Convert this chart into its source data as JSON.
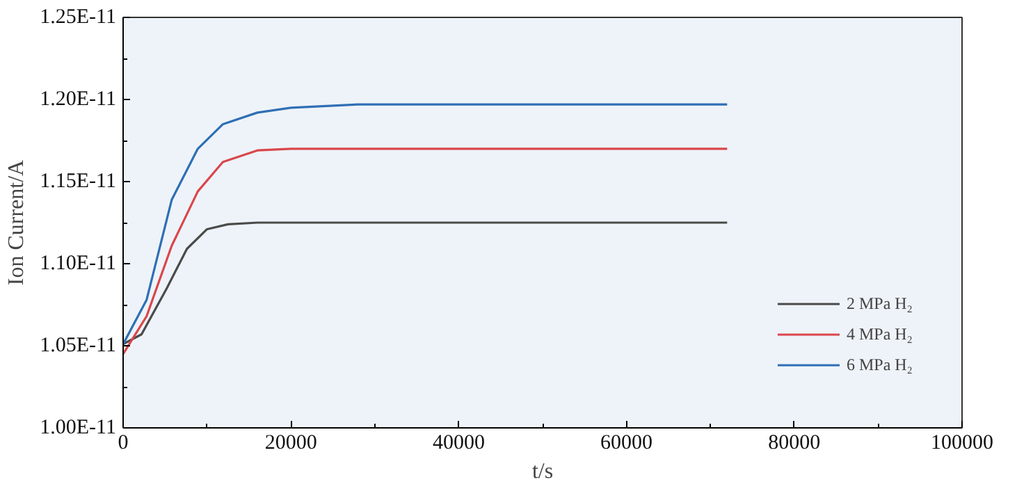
{
  "chart_data": {
    "type": "line",
    "xlabel": "t/s",
    "ylabel": "Ion Current/A",
    "xlim": [
      0,
      100000
    ],
    "xticks": [
      0,
      20000,
      40000,
      60000,
      80000,
      100000
    ],
    "ylim": [
      1e-11,
      1.25e-11
    ],
    "yticks": [
      {
        "value": 1e-11,
        "label": "1.00E-11"
      },
      {
        "value": 1.05e-11,
        "label": "1.05E-11"
      },
      {
        "value": 1.1e-11,
        "label": "1.10E-11"
      },
      {
        "value": 1.15e-11,
        "label": "1.15E-11"
      },
      {
        "value": 1.2e-11,
        "label": "1.20E-11"
      },
      {
        "value": 1.25e-11,
        "label": "1.25E-11"
      }
    ],
    "grid": false,
    "legend": "bottom right",
    "marker": "none",
    "line_style": "solid",
    "series": [
      {
        "name": "2 MPa H₂",
        "color": "#4a4a4a",
        "x": [
          0,
          2200,
          5200,
          7600,
          10000,
          12500,
          16000,
          20000,
          40000,
          72000
        ],
        "values": [
          1.051e-11,
          1.057e-11,
          1.085e-11,
          1.109e-11,
          1.121e-11,
          1.124e-11,
          1.125e-11,
          1.125e-11,
          1.125e-11,
          1.125e-11
        ]
      },
      {
        "name": "4 MPa H₂",
        "color": "#d9474b",
        "x": [
          0,
          2800,
          5800,
          8900,
          11900,
          16000,
          20000,
          30000,
          50000,
          72000
        ],
        "values": [
          1.045e-11,
          1.068e-11,
          1.111e-11,
          1.144e-11,
          1.162e-11,
          1.169e-11,
          1.17e-11,
          1.17e-11,
          1.17e-11,
          1.17e-11
        ]
      },
      {
        "name": "6 MPa H₂",
        "color": "#2e6fb4",
        "x": [
          0,
          2800,
          5800,
          8900,
          11900,
          16000,
          20000,
          28000,
          50000,
          72000
        ],
        "values": [
          1.051e-11,
          1.078e-11,
          1.139e-11,
          1.17e-11,
          1.185e-11,
          1.192e-11,
          1.195e-11,
          1.197e-11,
          1.197e-11,
          1.197e-11
        ]
      }
    ]
  }
}
